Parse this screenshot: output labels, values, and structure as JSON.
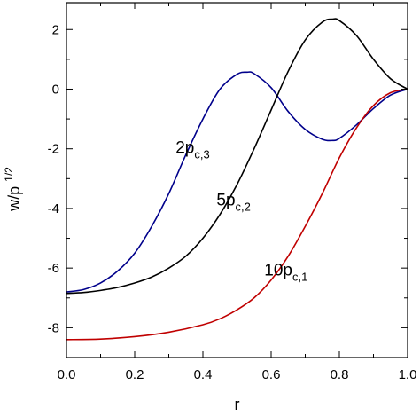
{
  "chart_data": {
    "type": "line",
    "xlabel": "r",
    "ylabel": "w/p",
    "ylabel_sup": "1/2",
    "xlim": [
      0.0,
      1.0
    ],
    "ylim": [
      -9,
      2.9
    ],
    "xticks": [
      {
        "value": 0.0,
        "label": "0.0"
      },
      {
        "value": 0.2,
        "label": "0.2"
      },
      {
        "value": 0.4,
        "label": "0.4"
      },
      {
        "value": 0.6,
        "label": "0.6"
      },
      {
        "value": 0.8,
        "label": "0.8"
      },
      {
        "value": 1.0,
        "label": "1.0"
      }
    ],
    "yticks": [
      {
        "value": 2,
        "label": "2"
      },
      {
        "value": 0,
        "label": "0"
      },
      {
        "value": -2,
        "label": "-2"
      },
      {
        "value": -4,
        "label": "-4"
      },
      {
        "value": -6,
        "label": "-6"
      },
      {
        "value": -8,
        "label": "-8"
      }
    ],
    "grid": false,
    "series": [
      {
        "color": "#00008b",
        "x": [
          0.0,
          0.05,
          0.1,
          0.15,
          0.2,
          0.25,
          0.3,
          0.35,
          0.4,
          0.45,
          0.5,
          0.53,
          0.55,
          0.6,
          0.65,
          0.7,
          0.75,
          0.78,
          0.8,
          0.85,
          0.9,
          0.95,
          1.0
        ],
        "y": [
          -6.8,
          -6.72,
          -6.5,
          -6.1,
          -5.5,
          -4.6,
          -3.5,
          -2.2,
          -1.0,
          0.0,
          0.5,
          0.57,
          0.52,
          0.05,
          -0.75,
          -1.35,
          -1.68,
          -1.72,
          -1.65,
          -1.2,
          -0.65,
          -0.2,
          0.0
        ]
      },
      {
        "color": "#000000",
        "x": [
          0.0,
          0.05,
          0.1,
          0.15,
          0.2,
          0.25,
          0.3,
          0.35,
          0.4,
          0.45,
          0.5,
          0.55,
          0.6,
          0.65,
          0.7,
          0.75,
          0.78,
          0.8,
          0.85,
          0.9,
          0.95,
          1.0
        ],
        "y": [
          -6.85,
          -6.82,
          -6.75,
          -6.65,
          -6.5,
          -6.3,
          -6.0,
          -5.6,
          -5.0,
          -4.2,
          -3.2,
          -2.0,
          -0.7,
          0.6,
          1.65,
          2.25,
          2.35,
          2.3,
          1.8,
          1.0,
          0.35,
          0.0
        ]
      },
      {
        "color": "#c00000",
        "x": [
          0.0,
          0.1,
          0.2,
          0.3,
          0.4,
          0.45,
          0.5,
          0.55,
          0.6,
          0.65,
          0.7,
          0.75,
          0.8,
          0.85,
          0.9,
          0.95,
          1.0
        ],
        "y": [
          -8.4,
          -8.38,
          -8.3,
          -8.15,
          -7.9,
          -7.7,
          -7.4,
          -7.0,
          -6.4,
          -5.6,
          -4.6,
          -3.5,
          -2.3,
          -1.3,
          -0.55,
          -0.12,
          0.0
        ]
      }
    ],
    "annotations": [
      {
        "main": "2p",
        "sub": "c,3",
        "x": 0.32,
        "y": -2.15
      },
      {
        "main": "5p",
        "sub": "c,2",
        "x": 0.44,
        "y": -3.9
      },
      {
        "main": "10p",
        "sub": "c,1",
        "x": 0.58,
        "y": -6.25
      }
    ]
  }
}
